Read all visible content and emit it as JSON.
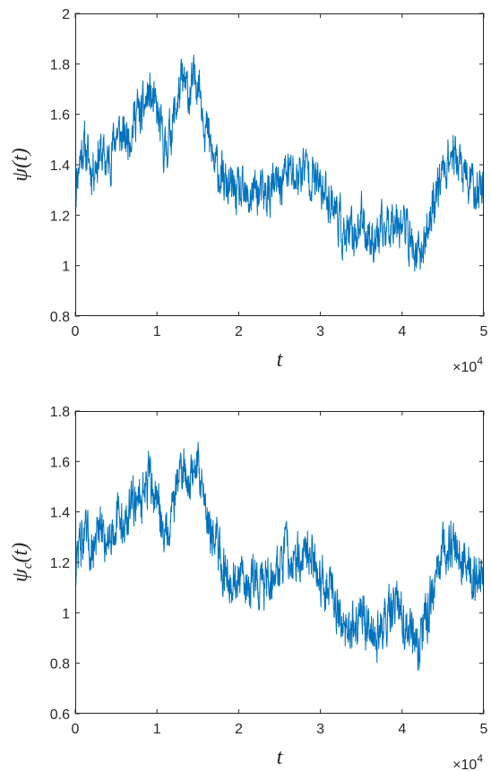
{
  "chart_data": [
    {
      "id": "top",
      "type": "line",
      "title": "",
      "xlabel": "t",
      "ylabel_symbol": "ψ",
      "ylabel_subscript": "",
      "ylabel_arg": "(t)",
      "xlim": [
        0,
        50000
      ],
      "ylim": [
        0.8,
        2.0
      ],
      "x_exponent_base": "×10",
      "x_exponent_power": "4",
      "x_ticks": [
        0,
        1,
        2,
        3,
        4,
        5
      ],
      "x_tick_labels": [
        "0",
        "1",
        "2",
        "3",
        "4",
        "5"
      ],
      "y_ticks": [
        0.8,
        1.0,
        1.2,
        1.4,
        1.6,
        1.8,
        2.0
      ],
      "y_tick_labels": [
        "0.8",
        "1",
        "1.2",
        "1.4",
        "1.6",
        "1.8",
        "2"
      ],
      "grid": false,
      "line_color": "#0072BD",
      "series": [
        {
          "noise_amplitude": 0.075,
          "x": [
            0,
            500,
            1000,
            2000,
            3000,
            4000,
            5000,
            6000,
            7000,
            7500,
            8000,
            9000,
            10000,
            11000,
            12000,
            13000,
            14000,
            15000,
            16000,
            17000,
            17500,
            18000,
            19000,
            20000,
            21000,
            22000,
            23000,
            24000,
            25000,
            26000,
            27000,
            28000,
            29000,
            30000,
            31000,
            32000,
            33000,
            34000,
            35000,
            36000,
            37000,
            38000,
            39000,
            40000,
            41000,
            42000,
            43000,
            44000,
            45000,
            46000,
            47000,
            48000,
            49000,
            50000
          ],
          "y": [
            1.3,
            1.42,
            1.48,
            1.38,
            1.45,
            1.4,
            1.53,
            1.5,
            1.55,
            1.62,
            1.58,
            1.68,
            1.6,
            1.45,
            1.58,
            1.72,
            1.68,
            1.76,
            1.55,
            1.4,
            1.38,
            1.33,
            1.3,
            1.28,
            1.25,
            1.3,
            1.27,
            1.3,
            1.32,
            1.38,
            1.34,
            1.4,
            1.36,
            1.3,
            1.28,
            1.22,
            1.1,
            1.12,
            1.18,
            1.12,
            1.1,
            1.15,
            1.2,
            1.18,
            1.1,
            1.02,
            1.12,
            1.28,
            1.38,
            1.45,
            1.4,
            1.33,
            1.3,
            1.32
          ]
        }
      ]
    },
    {
      "id": "bottom",
      "type": "line",
      "title": "",
      "xlabel": "t",
      "ylabel_symbol": "ψ",
      "ylabel_subscript": "c",
      "ylabel_arg": "(t)",
      "xlim": [
        0,
        50000
      ],
      "ylim": [
        0.6,
        1.8
      ],
      "x_exponent_base": "×10",
      "x_exponent_power": "4",
      "x_ticks": [
        0,
        1,
        2,
        3,
        4,
        5
      ],
      "x_tick_labels": [
        "0",
        "1",
        "2",
        "3",
        "4",
        "5"
      ],
      "y_ticks": [
        0.6,
        0.8,
        1.0,
        1.2,
        1.4,
        1.6,
        1.8
      ],
      "y_tick_labels": [
        "0.6",
        "0.8",
        "1",
        "1.2",
        "1.4",
        "1.6",
        "1.8"
      ],
      "grid": false,
      "line_color": "#0072BD",
      "series": [
        {
          "noise_amplitude": 0.08,
          "x": [
            0,
            500,
            1000,
            2000,
            3000,
            4000,
            5000,
            6000,
            7000,
            7500,
            8000,
            9000,
            10000,
            11000,
            12000,
            13000,
            14000,
            15000,
            16000,
            17000,
            17500,
            18000,
            19000,
            20000,
            21000,
            22000,
            23000,
            24000,
            25000,
            26000,
            27000,
            28000,
            29000,
            30000,
            31000,
            32000,
            33000,
            34000,
            35000,
            36000,
            37000,
            38000,
            39000,
            40000,
            41000,
            42000,
            43000,
            44000,
            45000,
            46000,
            47000,
            48000,
            49000,
            50000
          ],
          "y": [
            1.18,
            1.28,
            1.3,
            1.25,
            1.32,
            1.3,
            1.38,
            1.35,
            1.42,
            1.48,
            1.45,
            1.52,
            1.45,
            1.3,
            1.45,
            1.58,
            1.52,
            1.6,
            1.42,
            1.28,
            1.25,
            1.18,
            1.15,
            1.12,
            1.1,
            1.15,
            1.1,
            1.15,
            1.18,
            1.25,
            1.2,
            1.25,
            1.22,
            1.15,
            1.1,
            1.05,
            0.9,
            0.95,
            1.0,
            0.95,
            0.92,
            0.98,
            1.02,
            1.0,
            0.92,
            0.85,
            0.98,
            1.12,
            1.22,
            1.28,
            1.22,
            1.18,
            1.12,
            1.15
          ]
        }
      ]
    }
  ]
}
